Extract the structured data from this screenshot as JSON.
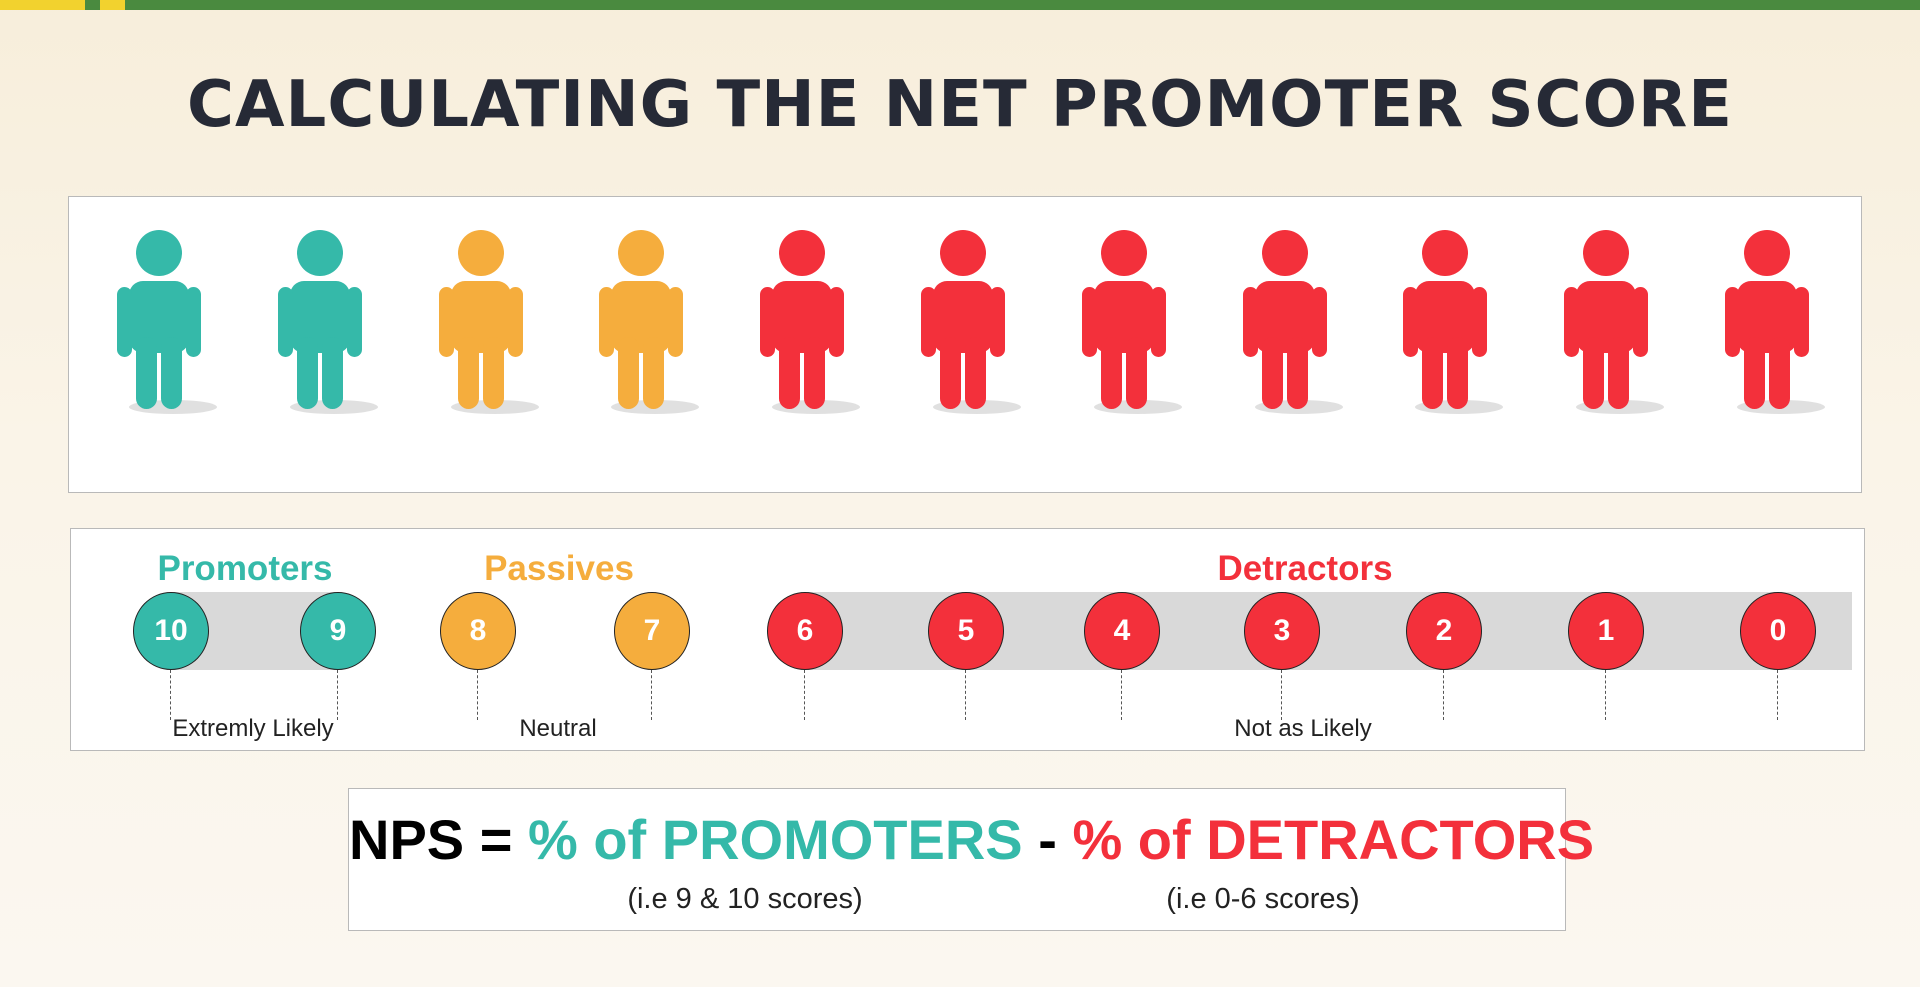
{
  "title": "CALCULATING THE NET PROMOTER SCORE",
  "colors": {
    "promoter": "#35b9a9",
    "passive": "#f5ad3d",
    "detractor": "#f3303b",
    "title": "#262a36",
    "accent_bar": "#4a8a3f",
    "accent_stripe": "#f2d22e"
  },
  "people": [
    "promoter",
    "promoter",
    "passive",
    "passive",
    "detractor",
    "detractor",
    "detractor",
    "detractor",
    "detractor",
    "detractor",
    "detractor"
  ],
  "categories": {
    "promoters": "Promoters",
    "passives": "Passives",
    "detractors": "Detractors"
  },
  "scores": {
    "promoters": [
      "10",
      "9"
    ],
    "passives": [
      "8",
      "7"
    ],
    "detractors": [
      "6",
      "5",
      "4",
      "3",
      "2",
      "1",
      "0"
    ]
  },
  "descriptions": {
    "promoters": "Extremly Likely",
    "passives": "Neutral",
    "detractors": "Not as Likely"
  },
  "formula": {
    "lhs": "NPS =",
    "promoters_term": "% of PROMOTERS",
    "minus": "-",
    "detractors_term": "% of DETRACTORS",
    "promoters_note": "(i.e 9 & 10 scores)",
    "detractors_note": "(i.e 0-6 scores)"
  }
}
